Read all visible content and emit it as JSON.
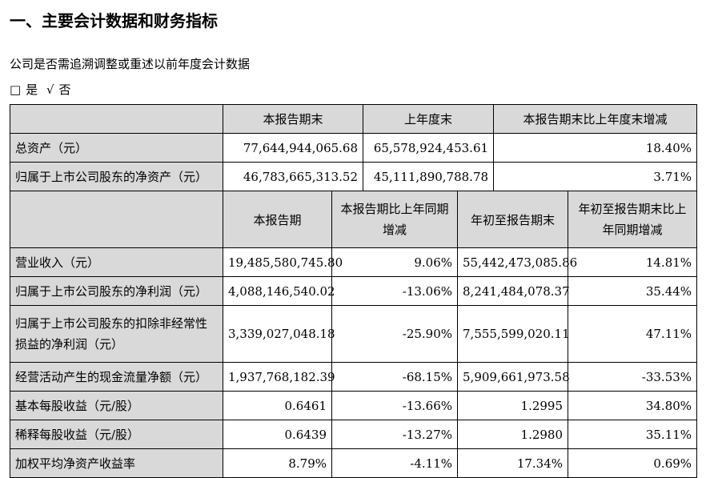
{
  "title": "一、主要会计数据和财务指标",
  "question": "公司是否需追溯调整或重述以前年度会计数据",
  "answer": {
    "yes_box": "□",
    "yes_label": "是",
    "no_mark": "√",
    "no_label": "否"
  },
  "table1": {
    "headers": [
      "本报告期末",
      "上年度末",
      "本报告期末比上年度末增减"
    ],
    "rows": [
      {
        "label": "总资产（元）",
        "values": [
          "77,644,944,065.68",
          "65,578,924,453.61",
          "18.40%"
        ]
      },
      {
        "label": "归属于上市公司股东的净资产（元）",
        "values": [
          "46,783,665,313.52",
          "45,111,890,788.78",
          "3.71%"
        ]
      }
    ]
  },
  "table2": {
    "headers": [
      "本报告期",
      "本报告期比上年同期增减",
      "年初至报告期末",
      "年初至报告期末比上年同期增减"
    ],
    "rows": [
      {
        "label": "营业收入（元）",
        "values": [
          "19,485,580,745.80",
          "9.06%",
          "55,442,473,085.86",
          "14.81%"
        ]
      },
      {
        "label": "归属于上市公司股东的净利润（元）",
        "values": [
          "4,088,146,540.02",
          "-13.06%",
          "8,241,484,078.37",
          "35.44%"
        ]
      },
      {
        "label": "归属于上市公司股东的扣除非经常性损益的净利润（元）",
        "values": [
          "3,339,027,048.18",
          "-25.90%",
          "7,555,599,020.11",
          "47.11%"
        ]
      },
      {
        "label": "经营活动产生的现金流量净额（元）",
        "values": [
          "1,937,768,182.39",
          "-68.15%",
          "5,909,661,973.58",
          "-33.53%"
        ]
      },
      {
        "label": "基本每股收益（元/股）",
        "values": [
          "0.6461",
          "-13.66%",
          "1.2995",
          "34.80%"
        ]
      },
      {
        "label": "稀释每股收益（元/股）",
        "values": [
          "0.6439",
          "-13.27%",
          "1.2980",
          "35.11%"
        ]
      },
      {
        "label": "加权平均净资产收益率",
        "values": [
          "8.79%",
          "-4.11%",
          "17.34%",
          "0.69%"
        ]
      }
    ]
  }
}
